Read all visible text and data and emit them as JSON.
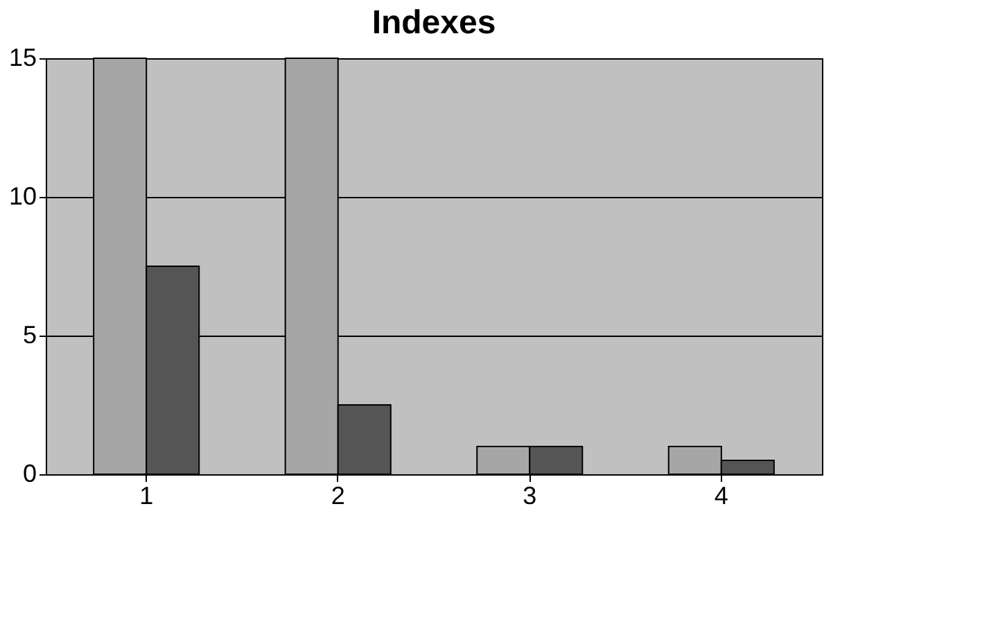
{
  "chart_data": {
    "type": "bar",
    "title": "Indexes",
    "categories": [
      "1",
      "2",
      "3",
      "4"
    ],
    "series": [
      {
        "color": "#a6a6a6",
        "values": [
          15,
          15,
          1,
          1
        ]
      },
      {
        "color": "#555555",
        "values": [
          7.5,
          2.5,
          1,
          0.5
        ]
      }
    ],
    "ylim": [
      0,
      15
    ],
    "yticks": [
      0,
      5,
      10,
      15
    ],
    "grid": "y",
    "legend": false
  }
}
